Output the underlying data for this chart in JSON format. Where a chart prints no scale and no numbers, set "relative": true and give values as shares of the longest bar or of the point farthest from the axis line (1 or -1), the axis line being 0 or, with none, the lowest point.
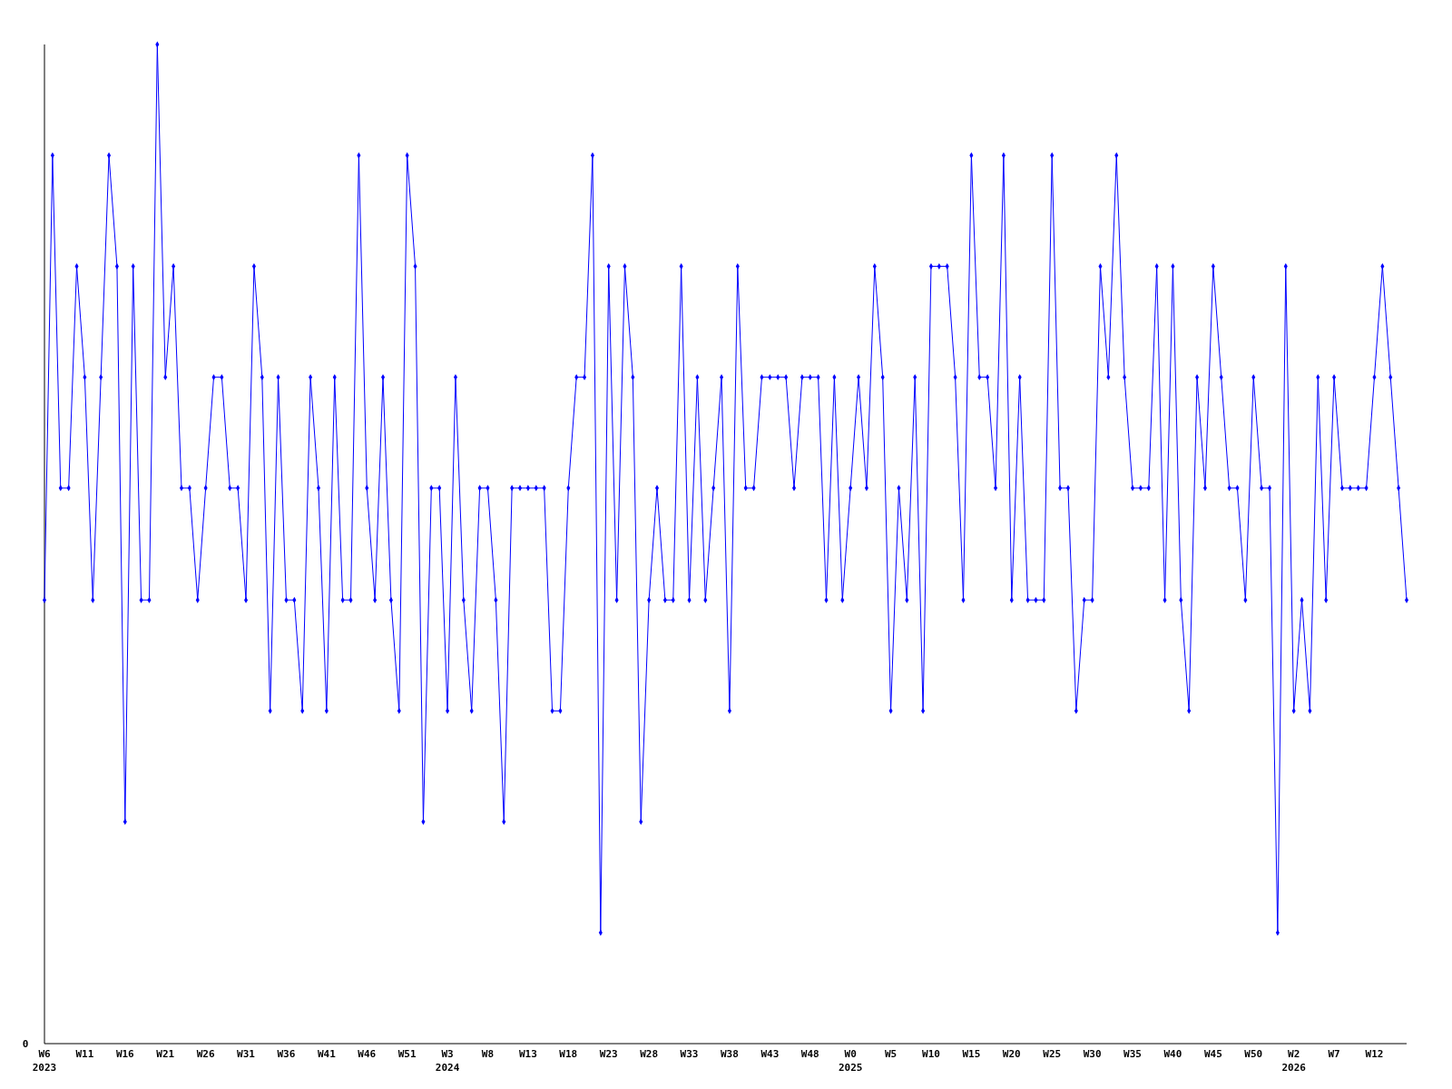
{
  "chart_data": {
    "type": "line",
    "relative": true,
    "annotations": [
      "0"
    ],
    "marker": "diamond",
    "line_style": "solid",
    "categories": [
      "W6\n2023",
      null,
      null,
      null,
      null,
      "W11",
      null,
      null,
      null,
      null,
      "W16",
      null,
      null,
      null,
      null,
      "W21",
      null,
      null,
      null,
      null,
      "W26",
      null,
      null,
      null,
      null,
      "W31",
      null,
      null,
      null,
      null,
      "W36",
      null,
      null,
      null,
      null,
      "W41",
      null,
      null,
      null,
      null,
      "W46",
      null,
      null,
      null,
      null,
      "W51",
      null,
      null,
      null,
      null,
      "W3\n2024",
      null,
      null,
      null,
      null,
      "W8",
      null,
      null,
      null,
      null,
      "W13",
      null,
      null,
      null,
      null,
      "W18",
      null,
      null,
      null,
      null,
      "W23",
      null,
      null,
      null,
      null,
      "W28",
      null,
      null,
      null,
      null,
      "W33",
      null,
      null,
      null,
      null,
      "W38",
      null,
      null,
      null,
      null,
      "W43",
      null,
      null,
      null,
      null,
      "W48",
      null,
      null,
      null,
      null,
      "W0\n2025",
      null,
      null,
      null,
      null,
      "W5",
      null,
      null,
      null,
      null,
      "W10",
      null,
      null,
      null,
      null,
      "W15",
      null,
      null,
      null,
      null,
      "W20",
      null,
      null,
      null,
      null,
      "W25",
      null,
      null,
      null,
      null,
      "W30",
      null,
      null,
      null,
      null,
      "W35",
      null,
      null,
      null,
      null,
      "W40",
      null,
      null,
      null,
      null,
      "W45",
      null,
      null,
      null,
      null,
      "W50",
      null,
      null,
      null,
      null,
      "W2\n2026",
      null,
      null,
      null,
      null,
      "W7",
      null,
      null,
      null,
      null,
      "W12",
      null,
      null,
      null,
      null
    ],
    "series": [
      {
        "color": "#0000ff",
        "values": [
          0.444,
          0.889,
          0.556,
          0.556,
          0.778,
          0.667,
          0.444,
          0.667,
          0.889,
          0.778,
          0.222,
          0.778,
          0.444,
          0.444,
          1,
          0.667,
          0.778,
          0.556,
          0.556,
          0.444,
          0.556,
          0.667,
          0.667,
          0.556,
          0.556,
          0.444,
          0.778,
          0.667,
          0.333,
          0.667,
          0.444,
          0.444,
          0.333,
          0.667,
          0.556,
          0.333,
          0.667,
          0.444,
          0.444,
          0.889,
          0.556,
          0.444,
          0.667,
          0.444,
          0.333,
          0.889,
          0.778,
          0.222,
          0.556,
          0.556,
          0.333,
          0.667,
          0.444,
          0.333,
          0.556,
          0.556,
          0.444,
          0.222,
          0.556,
          0.556,
          0.556,
          0.556,
          0.556,
          0.333,
          0.333,
          0.556,
          0.667,
          0.667,
          0.889,
          0.111,
          0.778,
          0.444,
          0.778,
          0.667,
          0.222,
          0.444,
          0.556,
          0.444,
          0.444,
          0.778,
          0.444,
          0.667,
          0.444,
          0.556,
          0.667,
          0.333,
          0.778,
          0.556,
          0.556,
          0.667,
          0.667,
          0.667,
          0.667,
          0.556,
          0.667,
          0.667,
          0.667,
          0.444,
          0.667,
          0.444,
          0.556,
          0.667,
          0.556,
          0.778,
          0.667,
          0.333,
          0.556,
          0.444,
          0.667,
          0.333,
          0.778,
          0.778,
          0.778,
          0.667,
          0.444,
          0.889,
          0.667,
          0.667,
          0.556,
          0.889,
          0.444,
          0.667,
          0.444,
          0.444,
          0.444,
          0.889,
          0.556,
          0.556,
          0.333,
          0.444,
          0.444,
          0.778,
          0.667,
          0.889,
          0.667,
          0.556,
          0.556,
          0.556,
          0.778,
          0.444,
          0.778,
          0.444,
          0.333,
          0.667,
          0.556,
          0.778,
          0.667,
          0.556,
          0.556,
          0.444,
          0.667,
          0.556,
          0.556,
          0.111,
          0.778,
          0.333,
          0.444,
          0.333,
          0.667,
          0.444,
          0.667,
          0.556,
          0.556,
          0.556,
          0.556,
          0.667,
          0.778,
          0.667,
          0.556,
          0.444
        ]
      }
    ]
  }
}
